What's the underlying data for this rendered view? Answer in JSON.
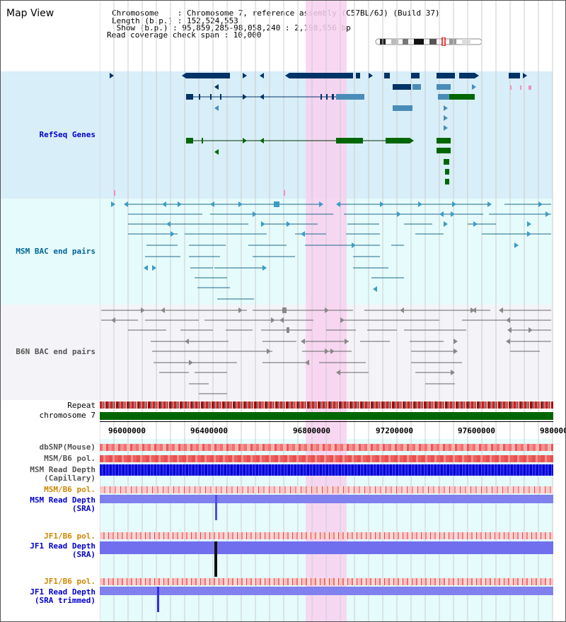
{
  "page": {
    "title": "Map View"
  },
  "info": {
    "chromosome_line": "Chromosome    : Chromosome 7, reference assembly (C57BL/6J) (Build 37)",
    "length_line": "Length (b.p.) : 152,524,553",
    "show_line": " Show (b.p.) : 95,859,285-98,058,240 : 2,198,956 bp",
    "span_line": "Read coverage check span : 10,000"
  },
  "tracks": {
    "refseq": "RefSeq Genes",
    "msm_bac": "MSM BAC end pairs",
    "b6n_bac": "B6N BAC end pairs",
    "repeat": "Repeat",
    "chromosome": "chromosome 7",
    "dbsnp": "dbSNP(Mouse)",
    "msm_b6_pol": "MSM/B6 pol.",
    "msm_depth_cap": "MSM Read Depth\n(Capillary)",
    "msm_b6_pol2": "MSM/B6 pol.",
    "msm_depth_sra": "MSM Read Depth\n(SRA)",
    "jf1_b6_pol": "JF1/B6 pol.",
    "jf1_depth_sra": "JF1 Read Depth\n(SRA)",
    "jf1_b6_pol2": "JF1/B6 pol.",
    "jf1_depth_trim": "JF1 Read Depth\n(SRA trimmed)"
  },
  "axis": {
    "ticks": [
      "96000000",
      "96400000",
      "96800000",
      "97200000",
      "97600000",
      "980000"
    ]
  },
  "colors": {
    "refseq_bg": "#d8eef8",
    "bac_bg": "#e6fbfb",
    "highlight": "#f8d0f0",
    "chrom_green": "#006600",
    "label_blue": "#0000cc",
    "label_teal": "#006699",
    "label_orange": "#cc8800",
    "label_gray": "#555555"
  }
}
